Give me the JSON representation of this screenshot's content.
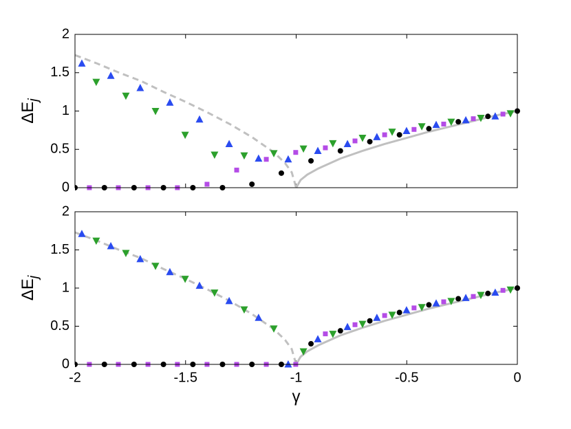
{
  "chart_data": [
    {
      "type": "scatter",
      "ylabel": "ΔE",
      "ylabel_subscript": "j",
      "xlim": [
        -2,
        0
      ],
      "ylim": [
        0,
        2
      ],
      "xticks": [
        -2,
        -1.5,
        -1,
        -0.5,
        0
      ],
      "yticks": [
        0,
        0.5,
        1,
        1.5,
        2
      ],
      "show_xtick_labels": false,
      "series": [
        {
          "marker": "dashed-line",
          "color": "#c0c0c0",
          "x": [
            -2,
            -1.9,
            -1.8,
            -1.7,
            -1.6,
            -1.5,
            -1.4,
            -1.3,
            -1.2,
            -1.1,
            -1.05,
            -1.02,
            -1
          ],
          "values": [
            1.73,
            1.62,
            1.5,
            1.39,
            1.25,
            1.12,
            0.98,
            0.83,
            0.66,
            0.46,
            0.32,
            0.2,
            0
          ]
        },
        {
          "marker": "solid-line",
          "color": "#c0c0c0",
          "x": [
            -1,
            -0.98,
            -0.95,
            -0.9,
            -0.8,
            -0.7,
            -0.6,
            -0.5,
            -0.4,
            -0.3,
            -0.2,
            -0.1,
            0
          ],
          "values": [
            0,
            0.1,
            0.17,
            0.25,
            0.38,
            0.48,
            0.57,
            0.65,
            0.73,
            0.8,
            0.87,
            0.94,
            1.0
          ]
        },
        {
          "marker": "circle",
          "color": "#000000",
          "x": [
            -2,
            -1.867,
            -1.733,
            -1.6,
            -1.467,
            -1.333,
            -1.2,
            -1.067,
            -0.933,
            -0.8,
            -0.667,
            -0.533,
            -0.4,
            -0.267,
            -0.133,
            0
          ],
          "values": [
            0,
            0,
            0,
            0,
            0,
            0,
            0.045,
            0.19,
            0.35,
            0.48,
            0.6,
            0.69,
            0.77,
            0.86,
            0.93,
            1.0
          ]
        },
        {
          "marker": "square",
          "color": "#b44ce6",
          "x": [
            -1.935,
            -1.804,
            -1.67,
            -1.537,
            -1.403,
            -1.269,
            -1.135,
            -1.002,
            -0.868,
            -0.734,
            -0.6,
            -0.467,
            -0.333,
            -0.199,
            -0.065
          ],
          "values": [
            0,
            0,
            0,
            0,
            0.045,
            0.23,
            0.37,
            0.46,
            0.52,
            0.61,
            0.69,
            0.76,
            0.83,
            0.9,
            0.96
          ]
        },
        {
          "marker": "triangle-up",
          "color": "#2a4bf0",
          "x": [
            -1.969,
            -1.838,
            -1.705,
            -1.571,
            -1.437,
            -1.303,
            -1.17,
            -1.036,
            -0.902,
            -0.768,
            -0.635,
            -0.501,
            -0.367,
            -0.233,
            -0.1
          ],
          "values": [
            1.62,
            1.46,
            1.3,
            1.11,
            0.89,
            0.57,
            0.38,
            0.37,
            0.48,
            0.57,
            0.66,
            0.74,
            0.82,
            0.88,
            0.93
          ]
        },
        {
          "marker": "triangle-down",
          "color": "#2ca02c",
          "x": [
            -1.904,
            -1.77,
            -1.636,
            -1.502,
            -1.369,
            -1.235,
            -1.101,
            -0.967,
            -0.834,
            -0.7,
            -0.566,
            -0.432,
            -0.299,
            -0.165,
            -0.031
          ],
          "values": [
            1.38,
            1.2,
            1.0,
            0.69,
            0.43,
            0.42,
            0.45,
            0.51,
            0.58,
            0.65,
            0.73,
            0.8,
            0.86,
            0.91,
            0.97
          ]
        }
      ]
    },
    {
      "type": "scatter",
      "ylabel": "ΔE",
      "ylabel_subscript": "j",
      "xlabel": "γ",
      "xlim": [
        -2,
        0
      ],
      "ylim": [
        0,
        2
      ],
      "xticks": [
        -2,
        -1.5,
        -1,
        -0.5,
        0
      ],
      "yticks": [
        0,
        0.5,
        1,
        1.5,
        2
      ],
      "show_xtick_labels": true,
      "series": [
        {
          "marker": "dashed-line",
          "color": "#c0c0c0",
          "x": [
            -2,
            -1.9,
            -1.8,
            -1.7,
            -1.6,
            -1.5,
            -1.4,
            -1.3,
            -1.2,
            -1.1,
            -1.05,
            -1.02,
            -1
          ],
          "values": [
            1.73,
            1.62,
            1.5,
            1.39,
            1.25,
            1.12,
            0.98,
            0.83,
            0.66,
            0.46,
            0.32,
            0.2,
            0
          ]
        },
        {
          "marker": "solid-line",
          "color": "#c0c0c0",
          "x": [
            -1,
            -0.98,
            -0.95,
            -0.9,
            -0.8,
            -0.7,
            -0.6,
            -0.5,
            -0.4,
            -0.3,
            -0.2,
            -0.1,
            0
          ],
          "values": [
            0,
            0.1,
            0.17,
            0.25,
            0.38,
            0.48,
            0.57,
            0.65,
            0.73,
            0.8,
            0.87,
            0.94,
            1.0
          ]
        },
        {
          "marker": "circle",
          "color": "#000000",
          "x": [
            -2,
            -1.867,
            -1.733,
            -1.6,
            -1.467,
            -1.333,
            -1.2,
            -1.067,
            -0.933,
            -0.8,
            -0.667,
            -0.533,
            -0.4,
            -0.267,
            -0.133,
            0
          ],
          "values": [
            0,
            0,
            0,
            0,
            0,
            0,
            0,
            0,
            0.27,
            0.44,
            0.57,
            0.68,
            0.78,
            0.86,
            0.93,
            1.0
          ]
        },
        {
          "marker": "square",
          "color": "#b44ce6",
          "x": [
            -1.935,
            -1.804,
            -1.67,
            -1.537,
            -1.403,
            -1.269,
            -1.135,
            -1.002,
            -0.868,
            -0.734,
            -0.6,
            -0.467,
            -0.333,
            -0.199,
            -0.065
          ],
          "values": [
            0,
            0,
            0,
            0,
            0,
            0,
            0,
            0,
            0.4,
            0.52,
            0.64,
            0.74,
            0.82,
            0.89,
            0.97
          ]
        },
        {
          "marker": "triangle-up",
          "color": "#2a4bf0",
          "x": [
            -1.969,
            -1.838,
            -1.705,
            -1.571,
            -1.437,
            -1.303,
            -1.17,
            -1.036,
            -0.902,
            -0.768,
            -0.635,
            -0.501,
            -0.367,
            -0.233,
            -0.1
          ],
          "values": [
            1.71,
            1.55,
            1.38,
            1.21,
            1.03,
            0.83,
            0.61,
            0,
            0.33,
            0.49,
            0.61,
            0.71,
            0.8,
            0.87,
            0.94
          ]
        },
        {
          "marker": "triangle-down",
          "color": "#2ca02c",
          "x": [
            -1.904,
            -1.77,
            -1.636,
            -1.502,
            -1.369,
            -1.235,
            -1.101,
            -0.967,
            -0.834,
            -0.7,
            -0.566,
            -0.432,
            -0.299,
            -0.165,
            -0.031
          ],
          "values": [
            1.62,
            1.46,
            1.29,
            1.12,
            0.94,
            0.72,
            0.47,
            0.17,
            0.4,
            0.53,
            0.65,
            0.75,
            0.83,
            0.91,
            0.98
          ]
        }
      ]
    }
  ]
}
